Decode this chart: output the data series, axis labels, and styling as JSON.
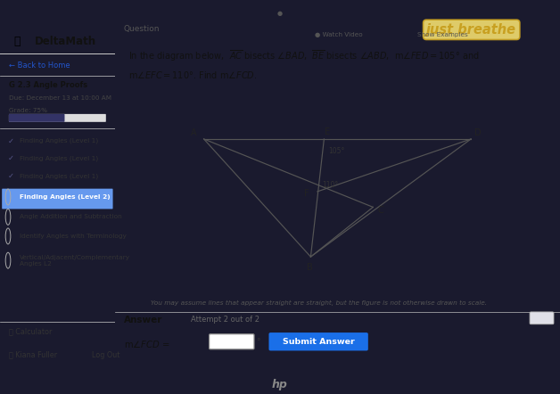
{
  "bg_outer": "#1a1a2e",
  "bg_left_panel": "#f0f0f0",
  "bg_right_panel": "#e8e8ee",
  "title_text": "DeltaMath",
  "course_title": "G 2.3 Angle Proofs",
  "due_text": "Due: December 13 at 10:00 AM",
  "grade_text": "Grade: 75%",
  "menu_items": [
    {
      "text": "Finding Angles (Level 1)",
      "checked": true,
      "active": false
    },
    {
      "text": "Finding Angles (Level 1)",
      "checked": true,
      "active": false
    },
    {
      "text": "Finding Angles (Level 1)",
      "checked": true,
      "active": false
    },
    {
      "text": "Finding Angles (Level 2)",
      "checked": false,
      "active": true
    },
    {
      "text": "Angle Addition and Subtraction",
      "checked": false,
      "active": false
    },
    {
      "text": "Identify Angles with Terminology",
      "checked": false,
      "active": false
    },
    {
      "text": "Vertical/Adjacent/Complementary\nAngles L2",
      "checked": false,
      "active": false
    }
  ],
  "disclaimer": "You may assume lines that appear straight are straight, but the figure is not otherwise drawn to scale.",
  "submit_btn_color": "#1a6fe8",
  "diagram": {
    "angle_FED": "105°",
    "angle_EFC": "110°",
    "line_color": "#555555"
  },
  "top_sticker_color": "#c8a020",
  "sticker_bg": "#f5e070"
}
